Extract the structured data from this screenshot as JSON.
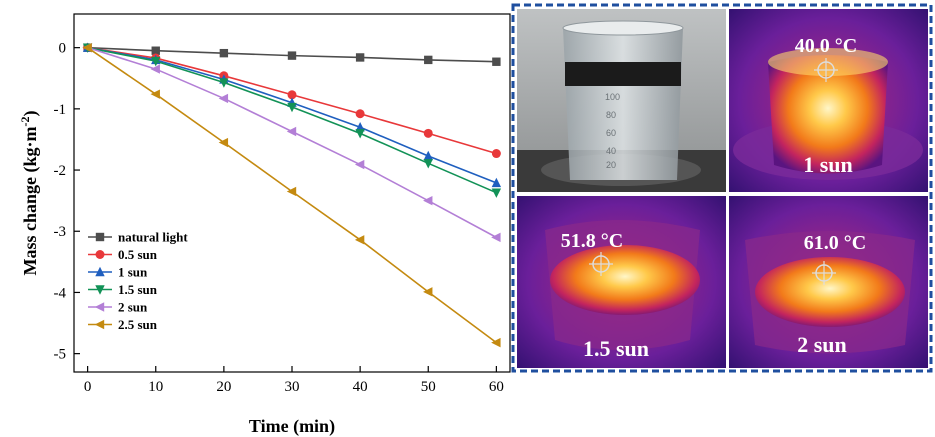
{
  "chart_data": {
    "type": "line",
    "xlabel": "Time (min)",
    "ylabel_main": "Mass change (kg·m",
    "ylabel_sup": "-2",
    "ylabel_end": ")",
    "xlim": [
      -2,
      62
    ],
    "ylim": [
      -5.3,
      0.55
    ],
    "xticks": [
      0,
      10,
      20,
      30,
      40,
      50,
      60
    ],
    "yticks": [
      0,
      -1,
      -2,
      -3,
      -4,
      -5
    ],
    "legend_position": "bottom-left",
    "grid": false,
    "x": [
      0,
      10,
      20,
      30,
      40,
      50,
      60
    ],
    "series": [
      {
        "name": "natural light",
        "color": "#4d4d4d",
        "marker": "square",
        "values": [
          0,
          -0.05,
          -0.09,
          -0.13,
          -0.16,
          -0.2,
          -0.23
        ]
      },
      {
        "name": "0.5 sun",
        "color": "#e8383a",
        "marker": "circle",
        "values": [
          0,
          -0.17,
          -0.46,
          -0.77,
          -1.08,
          -1.4,
          -1.73
        ]
      },
      {
        "name": "1 sun",
        "color": "#1f5fbf",
        "marker": "triangle-up",
        "values": [
          0,
          -0.2,
          -0.52,
          -0.9,
          -1.3,
          -1.77,
          -2.21
        ]
      },
      {
        "name": "1.5 sun",
        "color": "#129257",
        "marker": "triangle-down",
        "values": [
          0,
          -0.22,
          -0.57,
          -0.97,
          -1.4,
          -1.89,
          -2.37
        ]
      },
      {
        "name": "2 sun",
        "color": "#b37fd6",
        "marker": "triangle-left",
        "values": [
          0,
          -0.35,
          -0.83,
          -1.37,
          -1.91,
          -2.5,
          -3.1
        ]
      },
      {
        "name": "2.5 sun",
        "color": "#c48a10",
        "marker": "triangle-left",
        "values": [
          0,
          -0.76,
          -1.55,
          -2.35,
          -3.14,
          -3.99,
          -4.82
        ]
      }
    ]
  },
  "image_panels": {
    "border_color": "#1f4f9f",
    "panels": [
      {
        "id": "beaker-photo",
        "label": ""
      },
      {
        "id": "ir-1sun",
        "temperature": "40.0 °C",
        "label": "1 sun"
      },
      {
        "id": "ir-1.5sun",
        "temperature": "51.8 °C",
        "label": "1.5 sun"
      },
      {
        "id": "ir-2sun",
        "temperature": "61.0 °C",
        "label": "2 sun"
      }
    ]
  }
}
